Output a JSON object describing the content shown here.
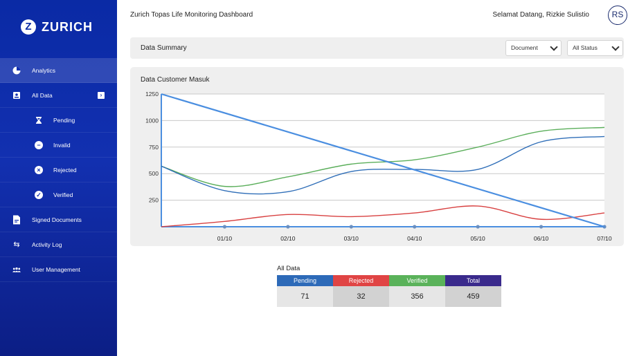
{
  "header": {
    "title": "Zurich Topas Life Monitoring Dashboard",
    "welcome": "Selamat Datang, Rizkie Sulistio",
    "avatar_initials": "RS"
  },
  "brand": {
    "logo_text": "ZURICH",
    "primary_color": "#0a2aa5"
  },
  "sidebar": {
    "items": [
      {
        "label": "Analytics",
        "icon": "pie-chart-icon"
      },
      {
        "label": "All Data",
        "icon": "id-card-icon"
      },
      {
        "label": "Pending",
        "icon": "hourglass-icon"
      },
      {
        "label": "Invalid",
        "icon": "minus-circle-icon"
      },
      {
        "label": "Rejected",
        "icon": "x-circle-icon"
      },
      {
        "label": "Verified",
        "icon": "check-circle-icon"
      },
      {
        "label": "Signed Documents",
        "icon": "document-icon"
      },
      {
        "label": "Activity Log",
        "icon": "swap-arrows-icon"
      },
      {
        "label": "User Management",
        "icon": "users-icon"
      }
    ]
  },
  "summary": {
    "label": "Data Summary",
    "document_select": "Document",
    "status_select": "All Status"
  },
  "chart_data": {
    "type": "line",
    "title": "Data Customer Masuk",
    "categories": [
      "",
      "01/10",
      "02/10",
      "03/10",
      "04/10",
      "05/10",
      "06/10",
      "07/10"
    ],
    "ylim": [
      0,
      1250
    ],
    "yticks": [
      250,
      500,
      750,
      1000,
      1250
    ],
    "grid": true,
    "series": [
      {
        "color": "#5aae5a",
        "values": [
          570,
          380,
          470,
          590,
          630,
          750,
          900,
          935
        ]
      },
      {
        "color": "#2f6eb8",
        "values": [
          570,
          340,
          330,
          520,
          540,
          540,
          800,
          850
        ]
      },
      {
        "color": "#d84040",
        "values": [
          0,
          50,
          115,
          95,
          130,
          195,
          70,
          130
        ]
      },
      {
        "color": "#4a8ee0",
        "values": [
          1250,
          1071,
          893,
          714,
          536,
          357,
          179,
          0
        ]
      }
    ]
  },
  "table": {
    "title": "All Data",
    "headers": [
      "Pending",
      "Rejected",
      "Verified",
      "Total"
    ],
    "values": [
      "71",
      "32",
      "356",
      "459"
    ],
    "colors": [
      "#2d6ab8",
      "#e04444",
      "#5ab25a",
      "#3a2a8c"
    ]
  }
}
